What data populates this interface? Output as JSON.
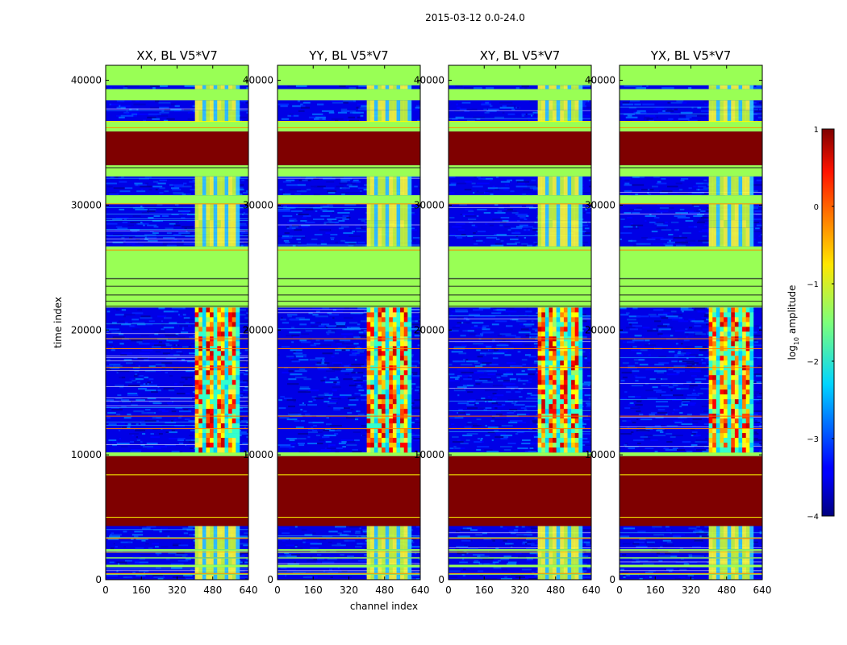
{
  "figure": {
    "suptitle": "2015-03-12 0.0-24.0",
    "colorbar_label": "log",
    "colorbar_label_sub": "10",
    "colorbar_label_rest": " amplitude",
    "colorbar_range": [
      -4,
      1
    ],
    "colorbar_ticks": [
      "1",
      "0",
      "−1",
      "−2",
      "−3",
      "−4"
    ],
    "colormap": "jet",
    "colors": {
      "background": "#ffffff",
      "nodata_green": "#99ff55",
      "saturated": "#7f0000",
      "low": "#0000aa"
    }
  },
  "chart_data": [
    {
      "type": "heatmap",
      "title": "XX, BL V5*V7",
      "xlabel": "",
      "ylabel": "time index",
      "xlim": [
        0,
        640
      ],
      "ylim": [
        0,
        41200
      ],
      "xticks": [
        0,
        160,
        320,
        480,
        640
      ],
      "yticks": [
        0,
        10000,
        20000,
        30000,
        40000
      ],
      "ytick_labels": [
        "0",
        "10000",
        "20000",
        "30000",
        "40000"
      ],
      "signal_channels": [
        400,
        600
      ]
    },
    {
      "type": "heatmap",
      "title": "YY, BL V5*V7",
      "xlabel": "channel index",
      "ylabel": "",
      "xlim": [
        0,
        640
      ],
      "ylim": [
        0,
        41200
      ],
      "xticks": [
        0,
        160,
        320,
        480,
        640
      ],
      "yticks": [
        0,
        10000,
        20000,
        30000,
        40000
      ],
      "ytick_labels": [
        "0",
        "10000",
        "20000",
        "30000",
        "40000"
      ],
      "signal_channels": [
        400,
        600
      ]
    },
    {
      "type": "heatmap",
      "title": "XY, BL V5*V7",
      "xlabel": "",
      "ylabel": "",
      "xlim": [
        0,
        640
      ],
      "ylim": [
        0,
        41200
      ],
      "xticks": [
        0,
        160,
        320,
        480,
        640
      ],
      "yticks": [
        0,
        10000,
        20000,
        30000,
        40000
      ],
      "ytick_labels": [
        "0",
        "10000",
        "20000",
        "30000",
        "40000"
      ],
      "signal_channels": [
        400,
        600
      ]
    },
    {
      "type": "heatmap",
      "title": "YX, BL V5*V7",
      "xlabel": "",
      "ylabel": "",
      "xlim": [
        0,
        640
      ],
      "ylim": [
        0,
        41200
      ],
      "xticks": [
        0,
        160,
        320,
        480,
        640
      ],
      "yticks": [
        0,
        10000,
        20000,
        30000,
        40000
      ],
      "ytick_labels": [
        "0",
        "10000",
        "20000",
        "30000",
        "40000"
      ],
      "signal_channels": [
        400,
        600
      ]
    }
  ],
  "time_bands": [
    {
      "from": 0,
      "to": 400,
      "kind": "noise"
    },
    {
      "from": 400,
      "to": 500,
      "kind": "nodata"
    },
    {
      "from": 500,
      "to": 1000,
      "kind": "noise"
    },
    {
      "from": 1000,
      "to": 1200,
      "kind": "nodata"
    },
    {
      "from": 1200,
      "to": 1700,
      "kind": "noise"
    },
    {
      "from": 1700,
      "to": 1800,
      "kind": "nodata"
    },
    {
      "from": 1800,
      "to": 2300,
      "kind": "noise"
    },
    {
      "from": 2300,
      "to": 2450,
      "kind": "nodata"
    },
    {
      "from": 2450,
      "to": 3300,
      "kind": "noise"
    },
    {
      "from": 3300,
      "to": 3400,
      "kind": "nodata"
    },
    {
      "from": 3400,
      "to": 4300,
      "kind": "noise"
    },
    {
      "from": 4300,
      "to": 9900,
      "kind": "saturated"
    },
    {
      "from": 9900,
      "to": 10200,
      "kind": "nodata"
    },
    {
      "from": 10200,
      "to": 21800,
      "kind": "signal"
    },
    {
      "from": 21800,
      "to": 24200,
      "kind": "nodata"
    },
    {
      "from": 24200,
      "to": 26400,
      "kind": "nodata"
    },
    {
      "from": 26400,
      "to": 26700,
      "kind": "nodata"
    },
    {
      "from": 26700,
      "to": 28200,
      "kind": "noise"
    },
    {
      "from": 28200,
      "to": 28800,
      "kind": "noise"
    },
    {
      "from": 28800,
      "to": 30100,
      "kind": "noise"
    },
    {
      "from": 30100,
      "to": 30800,
      "kind": "nodata"
    },
    {
      "from": 30800,
      "to": 32300,
      "kind": "noise"
    },
    {
      "from": 32300,
      "to": 33200,
      "kind": "nodata"
    },
    {
      "from": 33200,
      "to": 35900,
      "kind": "saturated"
    },
    {
      "from": 35900,
      "to": 36700,
      "kind": "nodata"
    },
    {
      "from": 36700,
      "to": 37600,
      "kind": "noise"
    },
    {
      "from": 37600,
      "to": 38400,
      "kind": "noise"
    },
    {
      "from": 38400,
      "to": 39300,
      "kind": "nodata"
    },
    {
      "from": 39300,
      "to": 39600,
      "kind": "noise"
    },
    {
      "from": 39600,
      "to": 41200,
      "kind": "nodata"
    }
  ],
  "hlines": [
    {
      "t": 500,
      "color": "#ff8800"
    },
    {
      "t": 2200,
      "color": "#ffcc00"
    },
    {
      "t": 3300,
      "color": "#ff6600"
    },
    {
      "t": 5000,
      "color": "#ffff00"
    },
    {
      "t": 8400,
      "color": "#ffff00"
    },
    {
      "t": 12100,
      "color": "#ff8800"
    },
    {
      "t": 13100,
      "color": "#ff6600"
    },
    {
      "t": 17000,
      "color": "#ff8800"
    },
    {
      "t": 18500,
      "color": "#ff8800"
    },
    {
      "t": 19300,
      "color": "#ff8800"
    },
    {
      "t": 21900,
      "color": "#222222"
    },
    {
      "t": 22300,
      "color": "#222222"
    },
    {
      "t": 22800,
      "color": "#222222"
    },
    {
      "t": 23500,
      "color": "#222222"
    },
    {
      "t": 24100,
      "color": "#222222"
    },
    {
      "t": 26400,
      "color": "#ff8800"
    },
    {
      "t": 30100,
      "color": "#ff8800"
    },
    {
      "t": 33000,
      "color": "#222222"
    },
    {
      "t": 36200,
      "color": "#ff8800"
    },
    {
      "t": 36700,
      "color": "#ffff00"
    }
  ]
}
